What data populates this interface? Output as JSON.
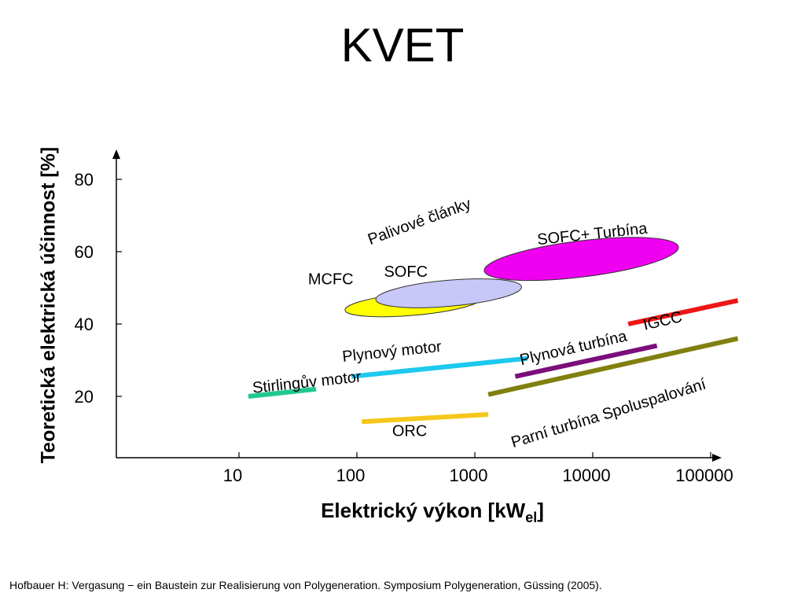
{
  "slide_title": "KVET",
  "citation": "Hofbauer H: Vergasung − ein Baustein zur Realisierung von Polygeneration. Symposium Polygeneration, Güssing (2005).",
  "chart_data": {
    "type": "line",
    "title": "KVET",
    "ylabel": "Teoretická elektrická účinnost [%]",
    "xlabel_main": "Elektrický výkon [kW",
    "xlabel_sub": "el",
    "xlabel_end": "]",
    "xscale": "log",
    "yticks": [
      20,
      40,
      60,
      80
    ],
    "xticks": [
      {
        "value": 10,
        "label": "10"
      },
      {
        "value": 100,
        "label": "100"
      },
      {
        "value": 1000,
        "label": "1000"
      },
      {
        "value": 10000,
        "label": "10000"
      },
      {
        "value": 100000,
        "label": "100000"
      }
    ],
    "ylim": [
      0,
      85
    ],
    "grid": false,
    "series": [
      {
        "name": "Stirlingův motor",
        "color": "#1ec98f",
        "x": [
          12,
          45
        ],
        "y": [
          20,
          22
        ]
      },
      {
        "name": "Plynový motor",
        "color": "#1ec8ee",
        "x": [
          90,
          2800
        ],
        "y": [
          25.5,
          30.5
        ]
      },
      {
        "name": "ORC",
        "color": "#f5c71a",
        "x": [
          110,
          1300
        ],
        "y": [
          13,
          15
        ]
      },
      {
        "name": "Plynová turbína",
        "color": "#7b0e7b",
        "x": [
          2200,
          35000
        ],
        "y": [
          25.5,
          34
        ]
      },
      {
        "name": "Parní turbína   Spoluspalování",
        "color": "#808010",
        "x": [
          1300,
          170000
        ],
        "y": [
          20.5,
          36
        ]
      },
      {
        "name": "IGCC",
        "color": "#ee1515",
        "x": [
          20000,
          170000
        ],
        "y": [
          40,
          46.5
        ]
      }
    ],
    "regions": [
      {
        "name": "MCFC",
        "color": "#ffff00",
        "cx": 300,
        "cy": 45.5,
        "rx_decades": 0.58,
        "ry": 3.1,
        "angle": -5
      },
      {
        "name": "SOFC",
        "color": "#c8c8f8",
        "cx": 600,
        "cy": 48.5,
        "rx_decades": 0.62,
        "ry": 3.6,
        "angle": -5
      },
      {
        "name": "SOFC+  Turbína",
        "color": "#f000f0",
        "cx": 8000,
        "cy": 58,
        "rx_decades": 0.83,
        "ry": 5.0,
        "angle": -7
      }
    ],
    "annotations": [
      {
        "text": "Palivové články",
        "x": 350,
        "y": 67,
        "rotate": -20
      },
      {
        "text": "SOFC+  Turbína",
        "x": 10000,
        "y": 63.5,
        "rotate": -6
      },
      {
        "text": "MCFC",
        "x": 60,
        "y": 51,
        "rotate": 0
      },
      {
        "text": "SOFC",
        "x": 260,
        "y": 53,
        "rotate": 0
      },
      {
        "text": "Plynový motor",
        "x": 200,
        "y": 31,
        "rotate": -6
      },
      {
        "text": "Plynová turbína",
        "x": 7000,
        "y": 32,
        "rotate": -13
      },
      {
        "text": "IGCC",
        "x": 40000,
        "y": 39.5,
        "rotate": -13
      },
      {
        "text": "Stirlingův motor",
        "x": 38,
        "y": 22.5,
        "rotate": -6
      },
      {
        "text": "Parní turbína   Spoluspalování",
        "x": 14000,
        "y": 14,
        "rotate": -17
      },
      {
        "text": "ORC",
        "x": 280,
        "y": 9,
        "rotate": 0
      }
    ]
  }
}
